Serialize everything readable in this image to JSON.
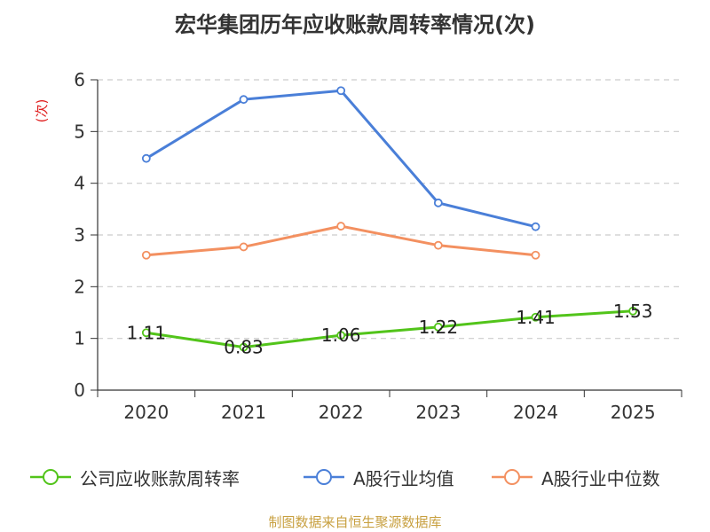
{
  "chart_data": {
    "type": "line",
    "title": "宏华集团历年应收账款周转率情况(次)",
    "ylabel": "(次)",
    "xlabel": "",
    "categories": [
      "2020",
      "2021",
      "2022",
      "2023",
      "2024",
      "2025"
    ],
    "yticks": [
      "0",
      "1",
      "2",
      "3",
      "4",
      "5",
      "6"
    ],
    "ylim": [
      0,
      6
    ],
    "grid": true,
    "legend_position": "bottom",
    "series": [
      {
        "name": "公司应收账款周转率",
        "color": "#52c41a",
        "values": [
          1.11,
          0.83,
          1.06,
          1.22,
          1.41,
          1.53
        ],
        "labels": [
          "1.11",
          "0.83",
          "1.06",
          "1.22",
          "1.41",
          "1.53"
        ]
      },
      {
        "name": "A股行业均值",
        "color": "#4a7fd8",
        "values": [
          4.48,
          5.62,
          5.79,
          3.62,
          3.16,
          null
        ]
      },
      {
        "name": "A股行业中位数",
        "color": "#f39060",
        "values": [
          2.61,
          2.77,
          3.17,
          2.8,
          2.61,
          null
        ]
      }
    ],
    "source": "制图数据来自恒生聚源数据库"
  }
}
